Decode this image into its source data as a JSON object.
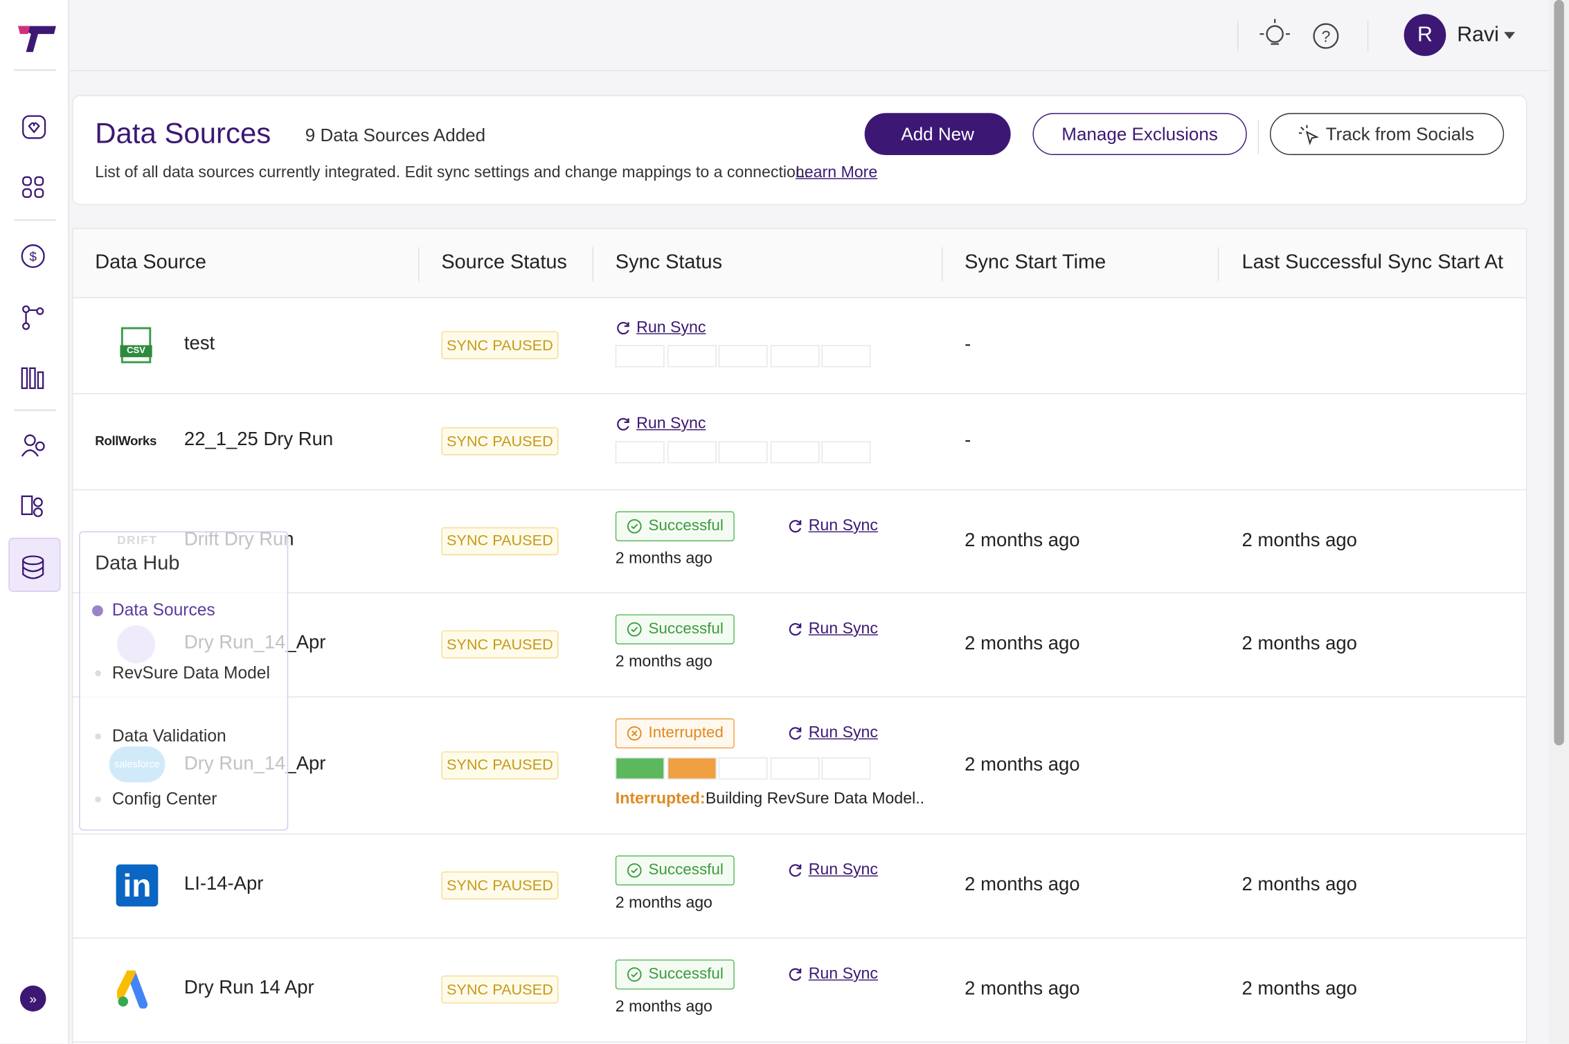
{
  "header": {
    "user_initial": "R",
    "user_name": "Ravi"
  },
  "page": {
    "title": "Data Sources",
    "count": "9 Data Sources Added",
    "description": "List of all data sources currently integrated. Edit sync settings and change mappings to a connection.",
    "learn_more": "Learn More",
    "buttons": [
      "Add New",
      "Manage Exclusions",
      "Track from Socials"
    ]
  },
  "table": {
    "columns": [
      "Data Source",
      "Source Status",
      "Sync Status",
      "Sync Start Time",
      "Last Successful Sync Start At"
    ],
    "rows": [
      {
        "name": "test",
        "logo_text": "CSV",
        "source_status": "SYNC PAUSED",
        "run_sync": "Run Sync",
        "progress": [
          "#ffffff",
          "#ffffff",
          "#ffffff",
          "#ffffff",
          "#ffffff"
        ],
        "sync_start": "-"
      },
      {
        "name": "22_1_25 Dry Run",
        "logo_text": "RollWorks",
        "source_status": "SYNC PAUSED",
        "run_sync": "Run Sync",
        "progress": [
          "#ffffff",
          "#ffffff",
          "#ffffff",
          "#ffffff",
          "#ffffff"
        ],
        "sync_start": "-"
      },
      {
        "name": "Drift Dry Run",
        "logo_text": "DRIFT",
        "source_status": "SYNC PAUSED",
        "sync_status": "Successful",
        "sync_time": "2 months ago",
        "run_sync": "Run Sync",
        "sync_start": "2 months ago",
        "last_sync": "2 months ago"
      },
      {
        "name": "Dry Run_14_Apr",
        "source_status": "SYNC PAUSED",
        "sync_status": "Successful",
        "sync_time": "2 months ago",
        "run_sync": "Run Sync",
        "sync_start": "2 months ago",
        "last_sync": "2 months ago"
      },
      {
        "name": "Dry Run_14_Apr",
        "logo_text": "salesforce",
        "source_status": "SYNC PAUSED",
        "sync_status": "Interrupted",
        "run_sync": "Run Sync",
        "progress": [
          "#5cb85c",
          "#f0a040",
          "#ffffff",
          "#ffffff",
          "#ffffff"
        ],
        "message_label": "Interrupted:",
        "message": "Building RevSure Data Model..",
        "sync_start": "2 months ago"
      },
      {
        "name": "LI-14-Apr",
        "logo_text": "in",
        "source_status": "SYNC PAUSED",
        "sync_status": "Successful",
        "sync_time": "2 months ago",
        "run_sync": "Run Sync",
        "sync_start": "2 months ago",
        "last_sync": "2 months ago"
      },
      {
        "name": "Dry Run 14 Apr",
        "source_status": "SYNC PAUSED",
        "sync_status": "Successful",
        "sync_time": "2 months ago",
        "run_sync": "Run Sync",
        "sync_start": "2 months ago",
        "last_sync": "2 months ago"
      }
    ]
  },
  "menu": {
    "title": "Data Hub",
    "items": [
      "Data Sources",
      "RevSure Data Model",
      "Data Validation",
      "Config Center"
    ]
  }
}
